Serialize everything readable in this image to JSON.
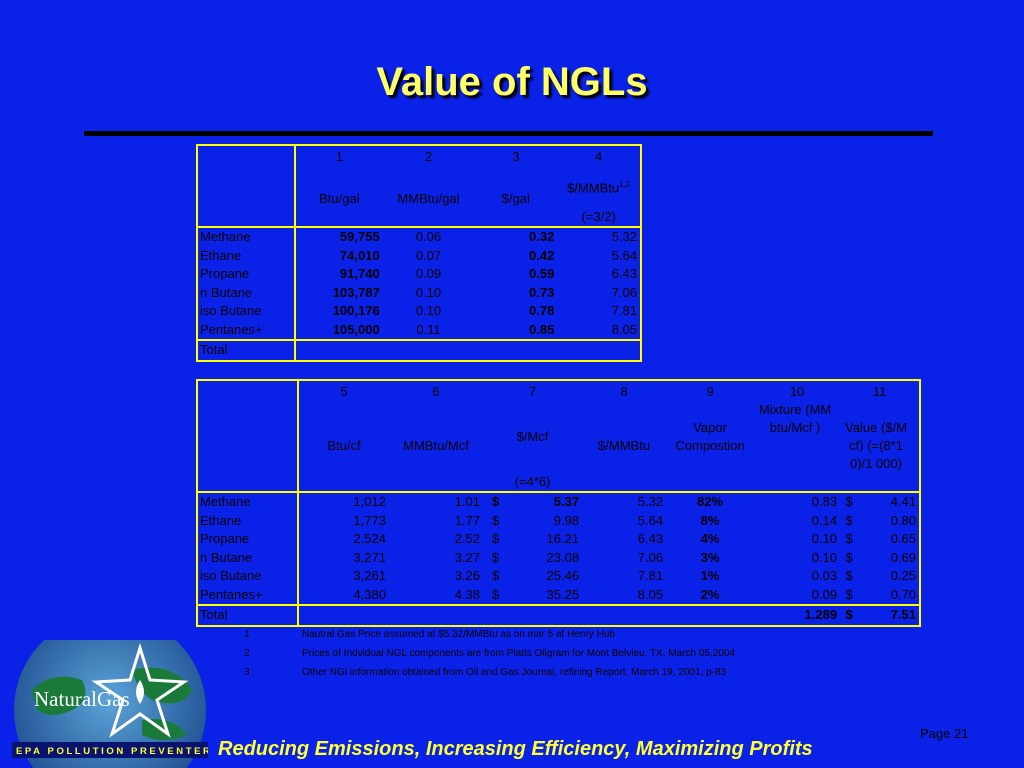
{
  "slide": {
    "title": "Value of NGLs",
    "page": "Page 21",
    "footer": "Reducing Emissions, Increasing Efficiency, Maximizing Profits"
  },
  "logo": {
    "text": "NaturalGas",
    "band": "EPA  POLLUTION PREVENTER",
    "colors": {
      "globe": "#1a7a3a",
      "band": "#0a1470",
      "star": "#ffffff"
    }
  },
  "table1": {
    "col_numbers": [
      "1",
      "2",
      "3",
      "4"
    ],
    "col_units": [
      "Btu/gal",
      "MMBtu/gal",
      "$/gal",
      "$/MMBtu"
    ],
    "col4_sup": "1,2",
    "col4_note": "(=3/2)",
    "rows": [
      {
        "name": "Methane",
        "btu_gal": "59,755",
        "mmbtu_gal": "0.06",
        "usd_gal": "0.32",
        "usd_mmbtu": "5.32"
      },
      {
        "name": "Ethane",
        "btu_gal": "74,010",
        "mmbtu_gal": "0.07",
        "usd_gal": "0.42",
        "usd_mmbtu": "5.64"
      },
      {
        "name": "Propane",
        "btu_gal": "91,740",
        "mmbtu_gal": "0.09",
        "usd_gal": "0.59",
        "usd_mmbtu": "6.43"
      },
      {
        "name": "n Butane",
        "btu_gal": "103,787",
        "mmbtu_gal": "0.10",
        "usd_gal": "0.73",
        "usd_mmbtu": "7.06"
      },
      {
        "name": "iso Butane",
        "btu_gal": "100,176",
        "mmbtu_gal": "0.10",
        "usd_gal": "0.78",
        "usd_mmbtu": "7.81"
      },
      {
        "name": "Pentanes+",
        "btu_gal": "105,000",
        "mmbtu_gal": "0.11",
        "usd_gal": "0.85",
        "usd_mmbtu": "8.05"
      }
    ],
    "total_label": "Total"
  },
  "table2": {
    "col_numbers": [
      "5",
      "6",
      "7",
      "8",
      "9",
      "10",
      "11"
    ],
    "col_units": [
      "Btu/cf",
      "MMBtu/Mcf",
      "$/Mcf",
      "$/MMBtu",
      "Vapor Compostion",
      "Mixture (MMbtu/Mcf )",
      "Value ($/Mcf) (=(8*10)/1 000)"
    ],
    "col7_note": "(=4*6)",
    "rows": [
      {
        "name": "Methane",
        "btu_cf": "1,012",
        "mmbtu_mcf": "1.01",
        "cur7": "$",
        "usd_mcf": "5.37",
        "usd_mmbtu": "5.32",
        "vapor": "82%",
        "mixture": "0.83",
        "cur11": "$",
        "value": "4.41"
      },
      {
        "name": "Ethane",
        "btu_cf": "1,773",
        "mmbtu_mcf": "1.77",
        "cur7": "$",
        "usd_mcf": "9.98",
        "usd_mmbtu": "5.64",
        "vapor": "8%",
        "mixture": "0.14",
        "cur11": "$",
        "value": "0.80"
      },
      {
        "name": "Propane",
        "btu_cf": "2,524",
        "mmbtu_mcf": "2.52",
        "cur7": "$",
        "usd_mcf": "16.21",
        "usd_mmbtu": "6.43",
        "vapor": "4%",
        "mixture": "0.10",
        "cur11": "$",
        "value": "0.65"
      },
      {
        "name": "n Butane",
        "btu_cf": "3,271",
        "mmbtu_mcf": "3.27",
        "cur7": "$",
        "usd_mcf": "23.08",
        "usd_mmbtu": "7.06",
        "vapor": "3%",
        "mixture": "0.10",
        "cur11": "$",
        "value": "0.69"
      },
      {
        "name": "iso Butane",
        "btu_cf": "3,261",
        "mmbtu_mcf": "3.26",
        "cur7": "$",
        "usd_mcf": "25.46",
        "usd_mmbtu": "7.81",
        "vapor": "1%",
        "mixture": "0.03",
        "cur11": "$",
        "value": "0.25"
      },
      {
        "name": "Pentanes+",
        "btu_cf": "4,380",
        "mmbtu_mcf": "4.38",
        "cur7": "$",
        "usd_mcf": "35.25",
        "usd_mmbtu": "8.05",
        "vapor": "2%",
        "mixture": "0.09",
        "cur11": "$",
        "value": "0.70"
      }
    ],
    "total": {
      "label": "Total",
      "mixture": "1.289",
      "cur11": "$",
      "value": "7.51"
    }
  },
  "footnotes": [
    {
      "num": "1",
      "text": "Nautral Gas Price assumed at $5.32/MMBtu as on mar 5 at Henry Hub"
    },
    {
      "num": "2",
      "text": "Prices of Indvidual NGL components are from Platts Oilgram for Mont Belvieu, TX, March 05,2004"
    },
    {
      "num": "3",
      "text": "Other NGl information obtained from Oil and Gas Journal, refining Report, March 19, 2001, p-83"
    }
  ]
}
